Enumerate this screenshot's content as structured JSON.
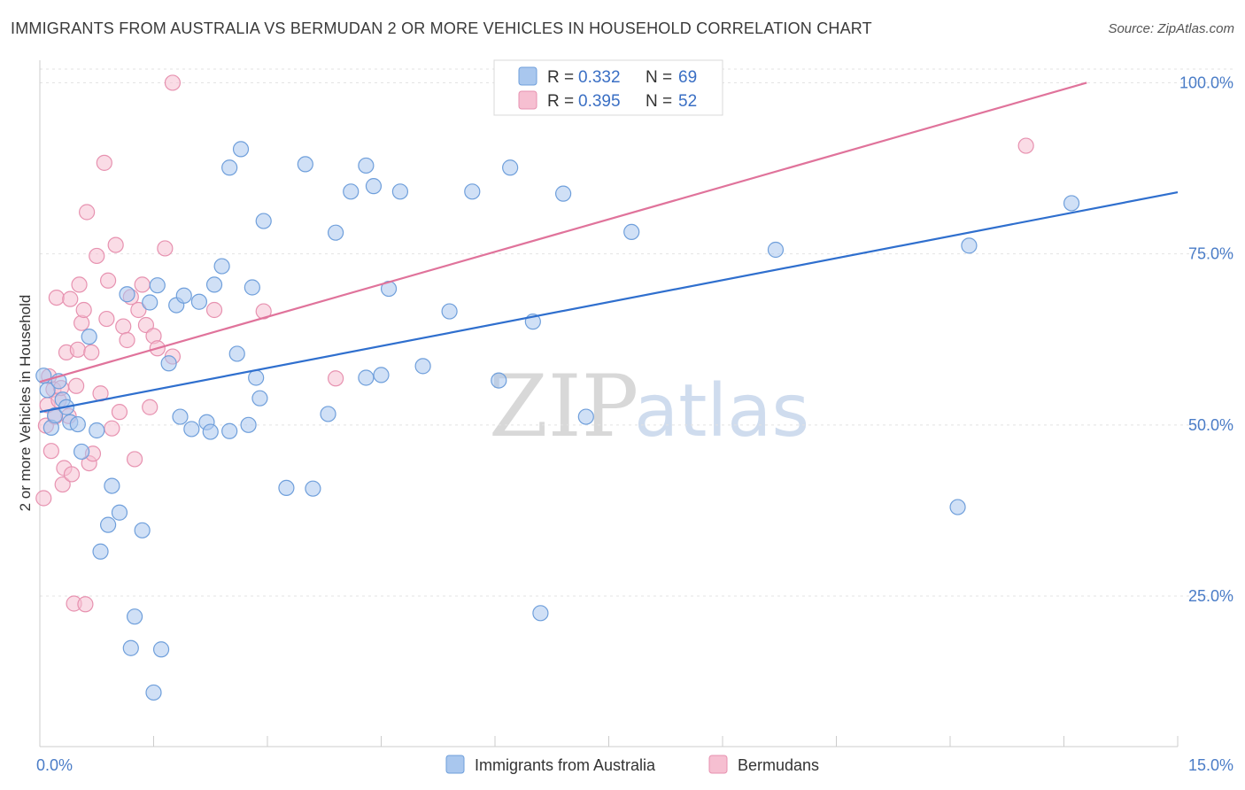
{
  "title": "IMMIGRANTS FROM AUSTRALIA VS BERMUDAN 2 OR MORE VEHICLES IN HOUSEHOLD CORRELATION CHART",
  "source": "Source: ZipAtlas.com",
  "watermark": {
    "zip": "ZIP",
    "atlas": "atlas"
  },
  "colors": {
    "blue_fill": "#a9c7ee",
    "blue_stroke": "#6f9fdb",
    "blue_line": "#2f6fce",
    "pink_fill": "#f6bfd1",
    "pink_stroke": "#e792b0",
    "pink_line": "#e0739b",
    "grid": "#e3e3e3",
    "axis_label": "#4a7cc7"
  },
  "legend": {
    "r_label": "R =",
    "n_label": "N =",
    "entries": [
      {
        "r": "0.332",
        "n": "69"
      },
      {
        "r": "0.395",
        "n": "52"
      }
    ]
  },
  "chart_data": {
    "type": "scatter",
    "title": "IMMIGRANTS FROM AUSTRALIA VS BERMUDAN 2 OR MORE VEHICLES IN HOUSEHOLD CORRELATION CHART",
    "xlabel": "",
    "ylabel": "2 or more Vehicles in Household",
    "xlim": [
      0,
      15
    ],
    "ylim": [
      3,
      102
    ],
    "x_tick_labels": [
      "0.0%",
      "15.0%"
    ],
    "y_ticks": [
      25,
      50,
      75,
      100
    ],
    "y_tick_labels": [
      "25.0%",
      "50.0%",
      "75.0%",
      "100.0%"
    ],
    "series": [
      {
        "name": "Immigrants from Australia",
        "r": 0.332,
        "n": 69,
        "trend": {
          "x0": 0,
          "y0": 51.9,
          "x1": 15,
          "y1": 84.0
        },
        "points": [
          [
            0.05,
            57.2
          ],
          [
            0.1,
            55.1
          ],
          [
            0.15,
            49.6
          ],
          [
            0.2,
            51.4
          ],
          [
            0.25,
            56.4
          ],
          [
            0.3,
            53.7
          ],
          [
            0.35,
            52.6
          ],
          [
            0.4,
            50.4
          ],
          [
            0.55,
            46.1
          ],
          [
            0.65,
            62.9
          ],
          [
            0.75,
            49.2
          ],
          [
            0.8,
            31.5
          ],
          [
            0.9,
            35.4
          ],
          [
            0.95,
            41.1
          ],
          [
            1.05,
            37.2
          ],
          [
            1.15,
            69.1
          ],
          [
            1.2,
            17.4
          ],
          [
            1.25,
            22.0
          ],
          [
            1.35,
            34.6
          ],
          [
            1.45,
            67.9
          ],
          [
            1.5,
            10.9
          ],
          [
            1.55,
            70.4
          ],
          [
            1.6,
            17.2
          ],
          [
            1.7,
            59.0
          ],
          [
            1.8,
            67.5
          ],
          [
            1.85,
            51.2
          ],
          [
            1.9,
            68.9
          ],
          [
            2.0,
            49.4
          ],
          [
            2.1,
            68.0
          ],
          [
            2.2,
            50.4
          ],
          [
            2.25,
            49.0
          ],
          [
            2.3,
            70.5
          ],
          [
            2.4,
            73.2
          ],
          [
            2.5,
            49.1
          ],
          [
            2.5,
            87.6
          ],
          [
            2.6,
            60.4
          ],
          [
            2.65,
            90.3
          ],
          [
            2.75,
            50.0
          ],
          [
            2.8,
            70.1
          ],
          [
            2.85,
            56.9
          ],
          [
            2.9,
            53.9
          ],
          [
            2.95,
            79.8
          ],
          [
            3.25,
            40.8
          ],
          [
            3.5,
            88.1
          ],
          [
            3.6,
            40.7
          ],
          [
            3.8,
            51.6
          ],
          [
            3.9,
            78.1
          ],
          [
            4.1,
            84.1
          ],
          [
            4.3,
            56.9
          ],
          [
            4.3,
            87.9
          ],
          [
            4.4,
            84.9
          ],
          [
            4.5,
            57.3
          ],
          [
            4.6,
            69.9
          ],
          [
            4.75,
            84.1
          ],
          [
            5.05,
            58.6
          ],
          [
            5.4,
            66.6
          ],
          [
            5.7,
            84.1
          ],
          [
            6.05,
            56.5
          ],
          [
            6.2,
            87.6
          ],
          [
            6.5,
            65.1
          ],
          [
            6.6,
            22.5
          ],
          [
            6.9,
            83.8
          ],
          [
            7.2,
            51.2
          ],
          [
            7.8,
            78.2
          ],
          [
            9.7,
            75.6
          ],
          [
            12.1,
            38.0
          ],
          [
            12.25,
            76.2
          ],
          [
            13.6,
            82.4
          ],
          [
            0.5,
            50.1
          ]
        ]
      },
      {
        "name": "Bermudans",
        "r": 0.395,
        "n": 52,
        "trend": {
          "x0": 0,
          "y0": 56.3,
          "x1": 13.8,
          "y1": 100.0
        },
        "points": [
          [
            0.05,
            39.3
          ],
          [
            0.08,
            49.9
          ],
          [
            0.1,
            52.9
          ],
          [
            0.12,
            57.1
          ],
          [
            0.15,
            46.2
          ],
          [
            0.18,
            55.2
          ],
          [
            0.2,
            51.2
          ],
          [
            0.22,
            68.6
          ],
          [
            0.25,
            53.6
          ],
          [
            0.28,
            55.4
          ],
          [
            0.3,
            41.3
          ],
          [
            0.32,
            43.7
          ],
          [
            0.35,
            60.6
          ],
          [
            0.38,
            51.3
          ],
          [
            0.4,
            68.4
          ],
          [
            0.42,
            42.8
          ],
          [
            0.45,
            23.9
          ],
          [
            0.48,
            55.7
          ],
          [
            0.5,
            61.0
          ],
          [
            0.52,
            70.5
          ],
          [
            0.55,
            64.9
          ],
          [
            0.58,
            66.8
          ],
          [
            0.6,
            23.8
          ],
          [
            0.62,
            81.1
          ],
          [
            0.65,
            44.4
          ],
          [
            0.68,
            60.6
          ],
          [
            0.7,
            45.8
          ],
          [
            0.75,
            74.7
          ],
          [
            0.8,
            54.6
          ],
          [
            0.85,
            88.3
          ],
          [
            0.88,
            65.5
          ],
          [
            0.9,
            71.1
          ],
          [
            0.95,
            49.5
          ],
          [
            1.0,
            76.3
          ],
          [
            1.05,
            51.9
          ],
          [
            1.1,
            64.4
          ],
          [
            1.15,
            62.4
          ],
          [
            1.2,
            68.7
          ],
          [
            1.25,
            45.0
          ],
          [
            1.3,
            66.8
          ],
          [
            1.35,
            70.5
          ],
          [
            1.4,
            64.6
          ],
          [
            1.45,
            52.6
          ],
          [
            1.5,
            63.0
          ],
          [
            1.55,
            61.2
          ],
          [
            1.65,
            75.8
          ],
          [
            1.75,
            60.0
          ],
          [
            1.75,
            100.0
          ],
          [
            2.3,
            66.8
          ],
          [
            2.95,
            66.6
          ],
          [
            3.9,
            56.8
          ],
          [
            13.0,
            90.8
          ]
        ]
      }
    ]
  }
}
